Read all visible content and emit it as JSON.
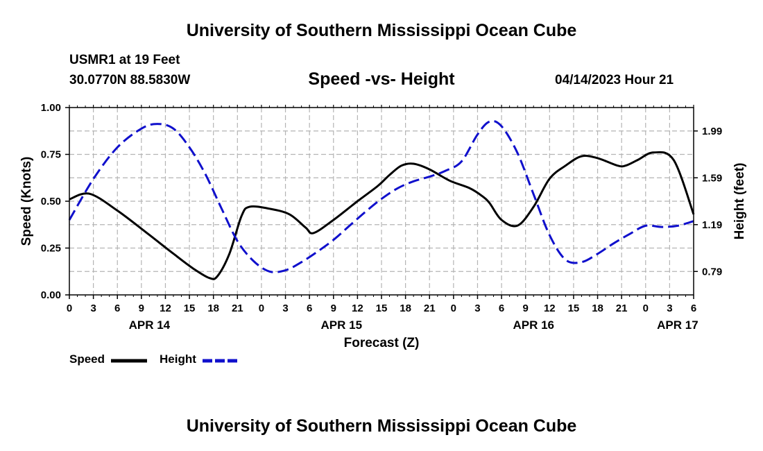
{
  "header": {
    "title": "University of Southern Mississippi Ocean Cube",
    "station": "USMR1 at 19 Feet",
    "coordinates": "30.0770N  88.5830W",
    "chart_title": "Speed -vs- Height",
    "datetime": "04/14/2023 Hour 21"
  },
  "footer": {
    "title": "University of Southern Mississippi Ocean Cube"
  },
  "legend": {
    "speed_label": "Speed",
    "height_label": "Height"
  },
  "colors": {
    "speed": "#000000",
    "height": "#1010cc",
    "grid": "#b4b4b4"
  },
  "chart_data": {
    "type": "line",
    "title": "Speed -vs- Height",
    "xlabel": "Forecast (Z)",
    "ylabel": "Speed (Knots)",
    "y2label": "Height (feet)",
    "grid": true,
    "legend_position": "bottom-left",
    "x_unit": "hours since 2023-04-14 00Z",
    "xlim": [
      0,
      78
    ],
    "ylim": [
      0,
      1
    ],
    "y2lim": [
      0.59,
      2.19
    ],
    "x_ticks": [
      0,
      3,
      6,
      9,
      12,
      15,
      18,
      21,
      24,
      27,
      30,
      33,
      36,
      39,
      42,
      45,
      48,
      51,
      54,
      57,
      60,
      63,
      66,
      69,
      72,
      75,
      78
    ],
    "x_tick_labels": [
      "0",
      "3",
      "6",
      "9",
      "12",
      "15",
      "18",
      "21",
      "0",
      "3",
      "6",
      "9",
      "12",
      "15",
      "18",
      "21",
      "0",
      "3",
      "6",
      "9",
      "12",
      "15",
      "18",
      "21",
      "0",
      "3",
      "6"
    ],
    "date_labels": [
      {
        "x": 10,
        "label": "APR 14"
      },
      {
        "x": 34,
        "label": "APR 15"
      },
      {
        "x": 58,
        "label": "APR 16"
      },
      {
        "x": 76,
        "label": "APR 17"
      }
    ],
    "y_ticks": [
      0.0,
      0.25,
      0.5,
      0.75,
      1.0
    ],
    "y_tick_labels": [
      "0.00",
      "0.25",
      "0.50",
      "0.75",
      "1.00"
    ],
    "y2_ticks": [
      0.79,
      1.19,
      1.59,
      1.99
    ],
    "y2_tick_labels": [
      "0.79",
      "1.19",
      "1.59",
      "1.99"
    ],
    "series": [
      {
        "name": "Speed",
        "axis": "left",
        "style": "solid",
        "x": [
          0,
          2.5,
          6,
          10,
          13,
          15.5,
          17.5,
          18.5,
          20,
          21.5,
          22.5,
          25,
          27.5,
          29.5,
          30.5,
          33,
          36,
          38.5,
          40,
          41.5,
          43,
          45,
          47.5,
          50,
          51.5,
          52.5,
          54,
          56,
          58,
          60,
          62,
          64,
          66,
          68.5,
          69.5,
          71,
          73,
          75.5,
          78
        ],
        "values": [
          0.51,
          0.54,
          0.45,
          0.32,
          0.22,
          0.14,
          0.09,
          0.1,
          0.22,
          0.42,
          0.47,
          0.46,
          0.43,
          0.36,
          0.33,
          0.4,
          0.5,
          0.58,
          0.64,
          0.69,
          0.7,
          0.67,
          0.61,
          0.57,
          0.53,
          0.49,
          0.4,
          0.37,
          0.47,
          0.62,
          0.69,
          0.74,
          0.73,
          0.69,
          0.69,
          0.72,
          0.76,
          0.72,
          0.43
        ]
      },
      {
        "name": "Height",
        "axis": "right",
        "style": "dashed",
        "x": [
          0,
          3,
          6,
          9,
          11,
          13,
          15,
          17,
          19,
          21,
          23,
          25,
          27,
          29,
          31,
          33,
          35,
          37,
          39,
          41,
          43,
          45,
          47,
          49,
          51,
          52.5,
          54,
          56,
          58,
          60,
          62,
          64,
          66,
          68,
          70,
          72,
          74,
          76,
          78
        ],
        "values": [
          1.23,
          1.58,
          1.85,
          2.01,
          2.05,
          2.01,
          1.85,
          1.62,
          1.33,
          1.05,
          0.88,
          0.79,
          0.8,
          0.87,
          0.96,
          1.06,
          1.18,
          1.3,
          1.41,
          1.5,
          1.56,
          1.6,
          1.65,
          1.73,
          1.96,
          2.07,
          2.03,
          1.8,
          1.45,
          1.1,
          0.89,
          0.87,
          0.94,
          1.03,
          1.11,
          1.18,
          1.17,
          1.18,
          1.22
        ]
      }
    ]
  }
}
